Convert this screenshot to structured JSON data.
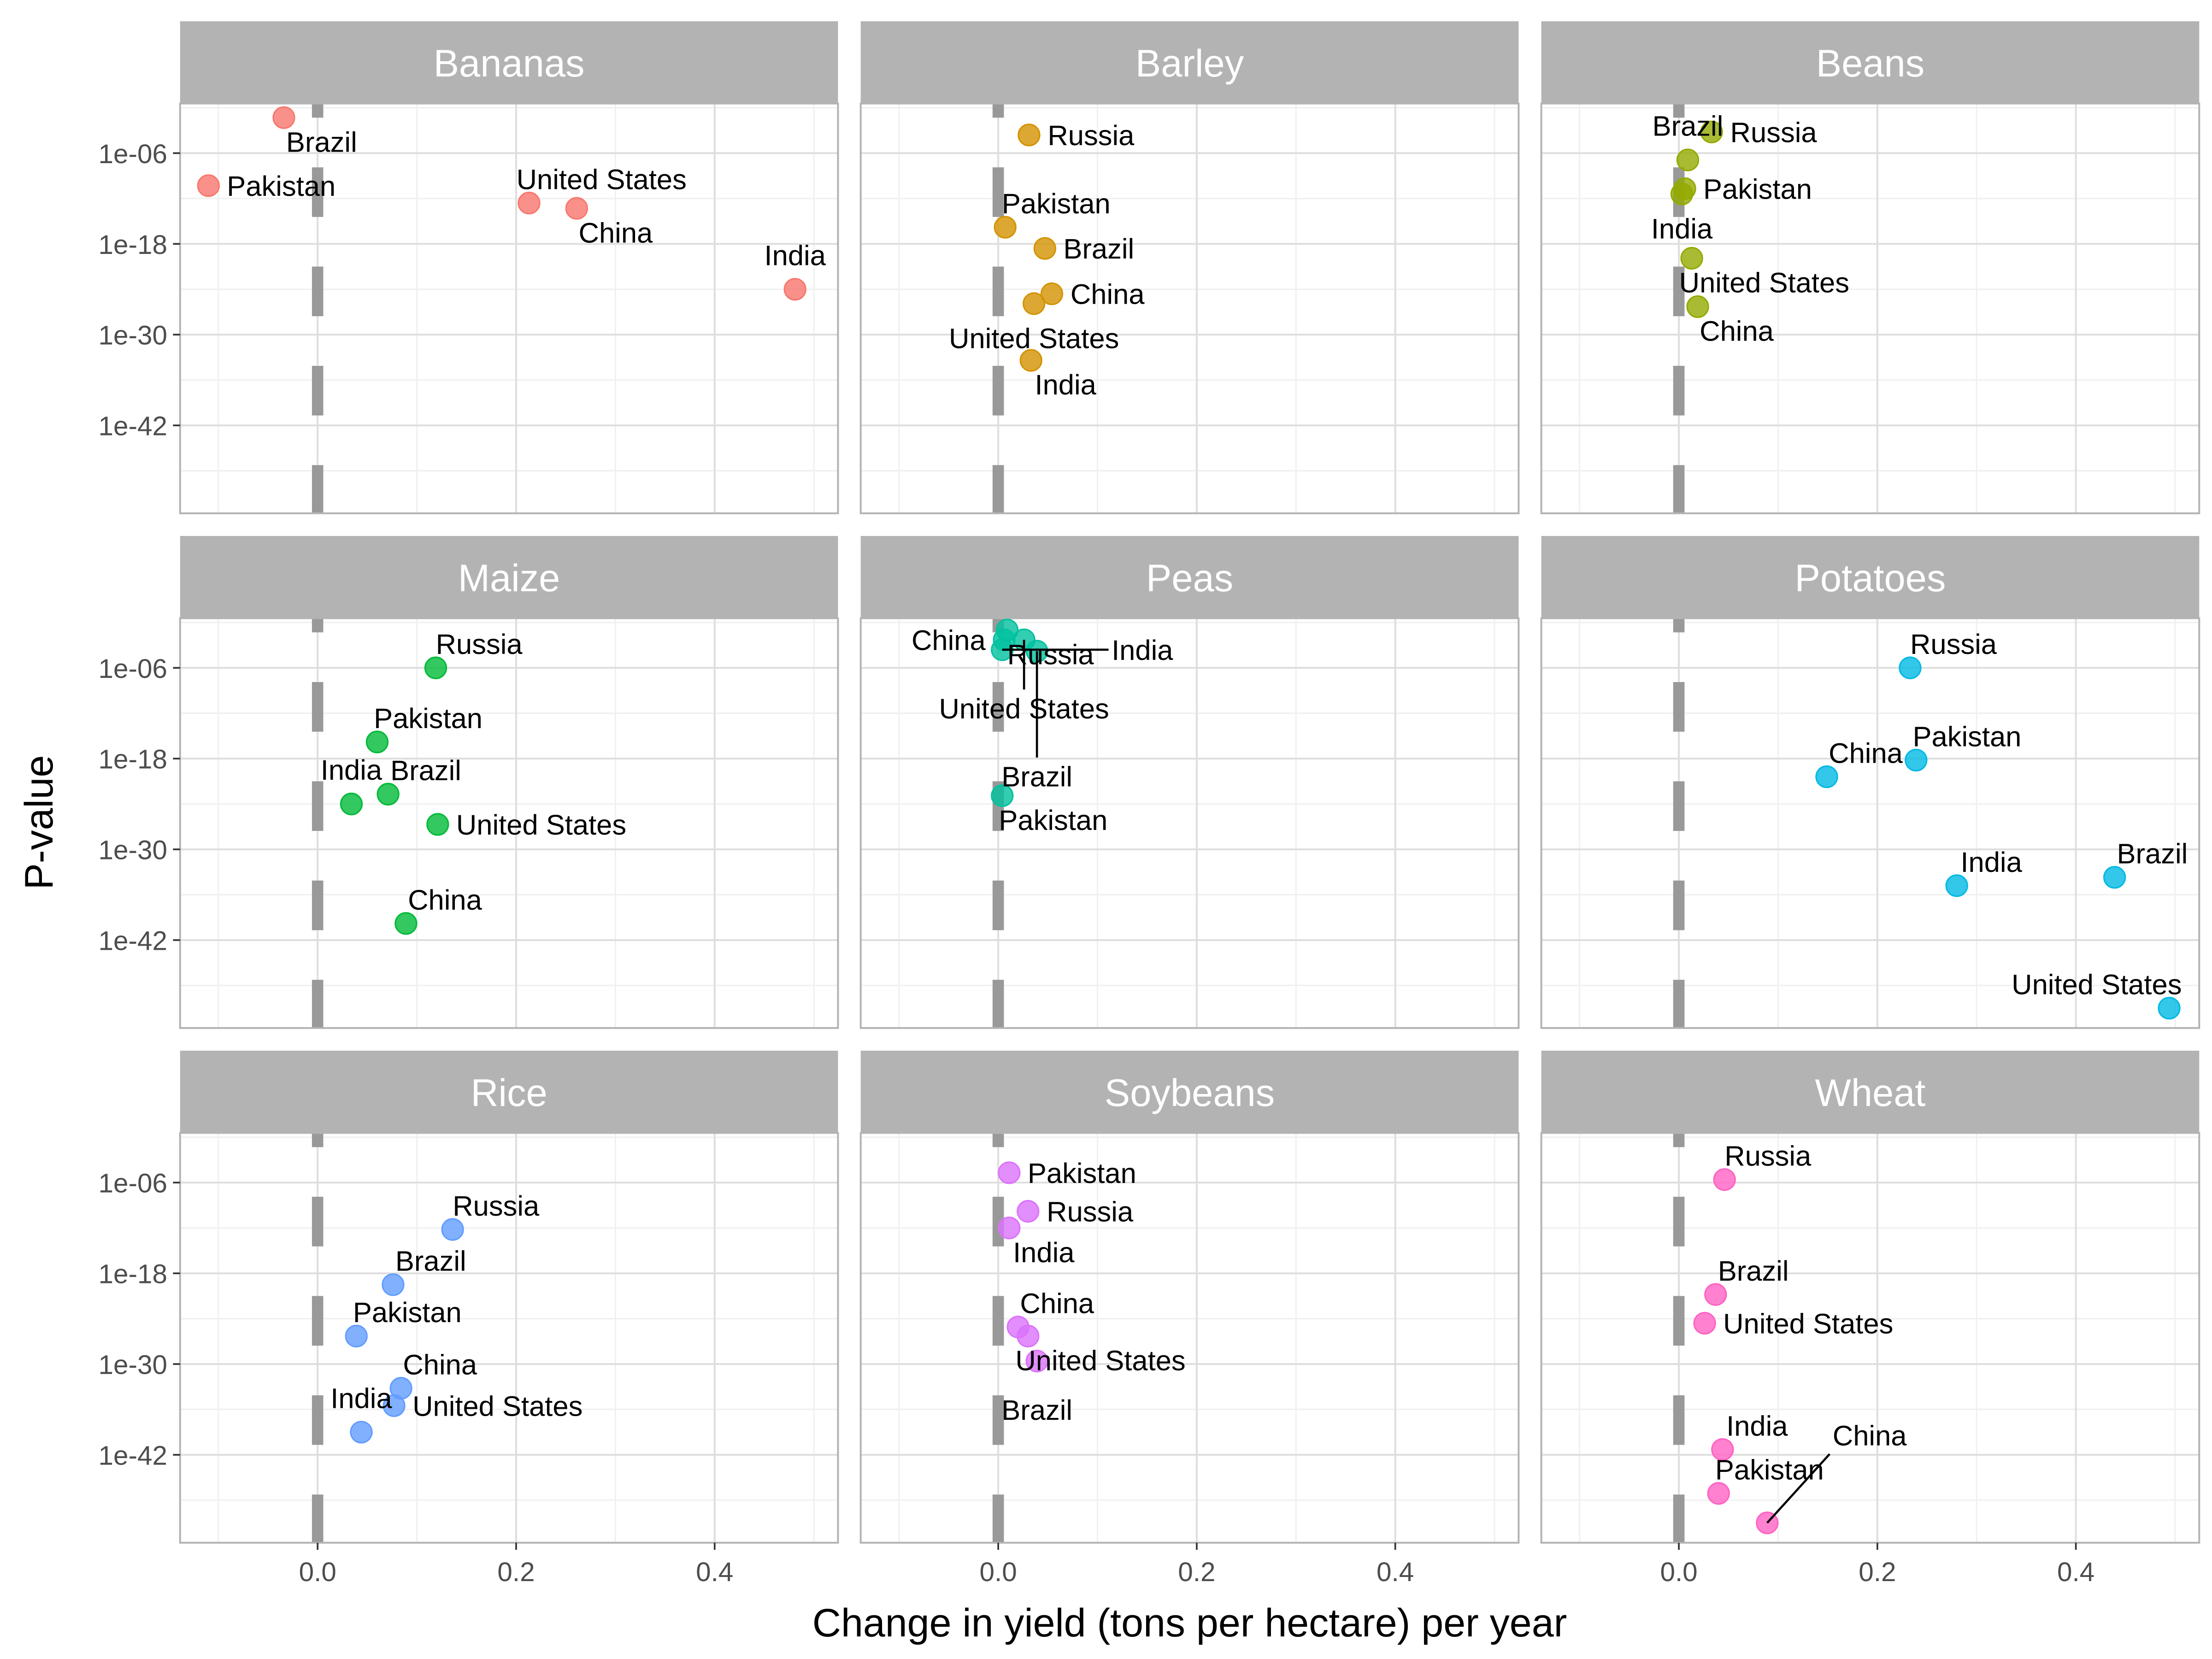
{
  "chart_data": {
    "type": "scatter",
    "facet": true,
    "xlabel": "Change in yield (tons per hectare) per year",
    "ylabel": "P-value",
    "y_scale": "log10",
    "xlim": [
      -0.14,
      0.52
    ],
    "ylim_exponent": [
      -53.6,
      0.6
    ],
    "x_ticks": [
      "0.0",
      "0.2",
      "0.4"
    ],
    "x_tick_values": [
      0,
      0.2,
      0.4
    ],
    "y_ticks": [
      "1e-06",
      "1e-18",
      "1e-30",
      "1e-42"
    ],
    "y_tick_exponents": [
      -6,
      -18,
      -30,
      -42
    ],
    "reference_line_x": 0,
    "grid": true,
    "legend": "none",
    "panels": [
      {
        "name": "Bananas",
        "color": "#F8766D",
        "points": [
          {
            "label": "Brazil",
            "x": -0.034,
            "p_exponent": -1.3
          },
          {
            "label": "Pakistan",
            "x": -0.11,
            "p_exponent": -10.3
          },
          {
            "label": "United States",
            "x": 0.213,
            "p_exponent": -12.6
          },
          {
            "label": "China",
            "x": 0.261,
            "p_exponent": -13.3
          },
          {
            "label": "India",
            "x": 0.481,
            "p_exponent": -24.0
          }
        ]
      },
      {
        "name": "Barley",
        "color": "#D39200",
        "points": [
          {
            "label": "Russia",
            "x": 0.031,
            "p_exponent": -3.6
          },
          {
            "label": "Pakistan",
            "x": 0.007,
            "p_exponent": -15.8
          },
          {
            "label": "Brazil",
            "x": 0.047,
            "p_exponent": -18.6
          },
          {
            "label": "China",
            "x": 0.054,
            "p_exponent": -24.6
          },
          {
            "label": "United States",
            "x": 0.036,
            "p_exponent": -25.9
          },
          {
            "label": "India",
            "x": 0.033,
            "p_exponent": -33.4
          }
        ]
      },
      {
        "name": "Beans",
        "color": "#93AA00",
        "points": [
          {
            "label": "Russia",
            "x": 0.033,
            "p_exponent": -3.2
          },
          {
            "label": "Brazil",
            "x": 0.009,
            "p_exponent": -6.9
          },
          {
            "label": "Pakistan",
            "x": 0.006,
            "p_exponent": -10.7
          },
          {
            "label": "India",
            "x": 0.003,
            "p_exponent": -11.4
          },
          {
            "label": "United States",
            "x": 0.013,
            "p_exponent": -19.9
          },
          {
            "label": "China",
            "x": 0.019,
            "p_exponent": -26.3
          }
        ]
      },
      {
        "name": "Maize",
        "color": "#00BA38",
        "points": [
          {
            "label": "Russia",
            "x": 0.119,
            "p_exponent": -6.0
          },
          {
            "label": "Pakistan",
            "x": 0.06,
            "p_exponent": -15.8
          },
          {
            "label": "Brazil",
            "x": 0.071,
            "p_exponent": -22.7
          },
          {
            "label": "India",
            "x": 0.034,
            "p_exponent": -24.0
          },
          {
            "label": "United States",
            "x": 0.121,
            "p_exponent": -26.7
          },
          {
            "label": "China",
            "x": 0.089,
            "p_exponent": -39.8
          }
        ]
      },
      {
        "name": "Peas",
        "color": "#00C19F",
        "points": [
          {
            "label": "Russia",
            "x": 0.009,
            "p_exponent": -1.0
          },
          {
            "label": "China",
            "x": 0.006,
            "p_exponent": -2.3
          },
          {
            "label": "United States",
            "x": 0.026,
            "p_exponent": -2.3
          },
          {
            "label": "India",
            "x": 0.004,
            "p_exponent": -3.6
          },
          {
            "label": "Brazil",
            "x": 0.039,
            "p_exponent": -3.8
          },
          {
            "label": "Pakistan",
            "x": 0.004,
            "p_exponent": -22.9
          }
        ]
      },
      {
        "name": "Potatoes",
        "color": "#00B9E3",
        "points": [
          {
            "label": "Russia",
            "x": 0.233,
            "p_exponent": -6.0
          },
          {
            "label": "Pakistan",
            "x": 0.239,
            "p_exponent": -18.2
          },
          {
            "label": "China",
            "x": 0.149,
            "p_exponent": -20.4
          },
          {
            "label": "Brazil",
            "x": 0.439,
            "p_exponent": -33.7
          },
          {
            "label": "India",
            "x": 0.28,
            "p_exponent": -34.8
          },
          {
            "label": "United States",
            "x": 0.494,
            "p_exponent": -51.0
          }
        ]
      },
      {
        "name": "Rice",
        "color": "#619CFF",
        "points": [
          {
            "label": "Russia",
            "x": 0.136,
            "p_exponent": -12.2
          },
          {
            "label": "Brazil",
            "x": 0.076,
            "p_exponent": -19.5
          },
          {
            "label": "Pakistan",
            "x": 0.039,
            "p_exponent": -26.3
          },
          {
            "label": "China",
            "x": 0.084,
            "p_exponent": -33.2
          },
          {
            "label": "United States",
            "x": 0.077,
            "p_exponent": -35.5
          },
          {
            "label": "India",
            "x": 0.044,
            "p_exponent": -39.0
          }
        ]
      },
      {
        "name": "Soybeans",
        "color": "#DB72FB",
        "points": [
          {
            "label": "Pakistan",
            "x": 0.011,
            "p_exponent": -4.7
          },
          {
            "label": "Russia",
            "x": 0.03,
            "p_exponent": -9.8
          },
          {
            "label": "India",
            "x": 0.011,
            "p_exponent": -12.0
          },
          {
            "label": "China",
            "x": 0.02,
            "p_exponent": -25.1
          },
          {
            "label": "United States",
            "x": 0.03,
            "p_exponent": -26.3
          },
          {
            "label": "Brazil",
            "x": 0.039,
            "p_exponent": -29.6
          }
        ]
      },
      {
        "name": "Wheat",
        "color": "#FF61C3",
        "points": [
          {
            "label": "Russia",
            "x": 0.046,
            "p_exponent": -5.6
          },
          {
            "label": "Brazil",
            "x": 0.037,
            "p_exponent": -20.8
          },
          {
            "label": "United States",
            "x": 0.026,
            "p_exponent": -24.6
          },
          {
            "label": "India",
            "x": 0.044,
            "p_exponent": -41.3
          },
          {
            "label": "Pakistan",
            "x": 0.04,
            "p_exponent": -47.1
          },
          {
            "label": "China",
            "x": 0.089,
            "p_exponent": -51.0
          }
        ]
      }
    ]
  }
}
